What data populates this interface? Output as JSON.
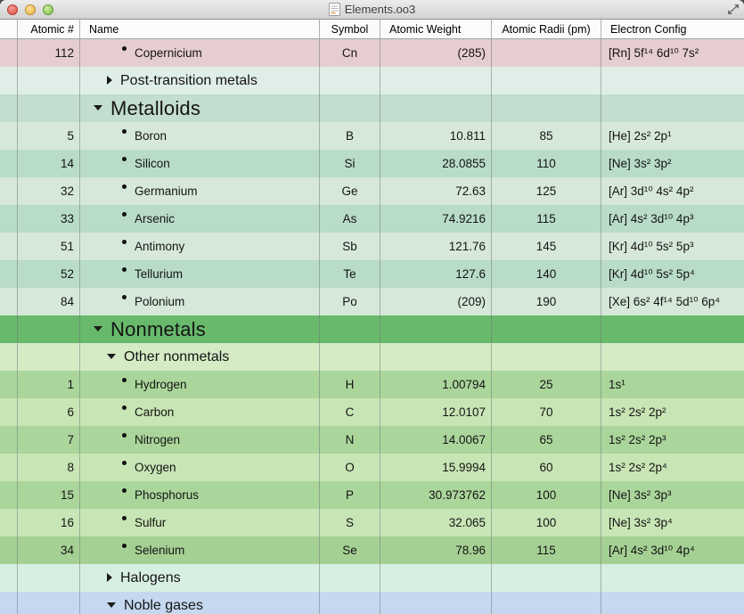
{
  "window": {
    "title": "Elements.oo3"
  },
  "icons": {
    "close": "close-button",
    "minimize": "minimize-button",
    "zoom": "zoom-button",
    "document": "document-icon",
    "fullscreen": "fullscreen-icon"
  },
  "colors": {
    "pink": "#e6cdcf",
    "palemint": "#dfeee6",
    "medmint": "#c3ddcf",
    "tealLight": "#d5e8d9",
    "tealDark": "#b9dcc9",
    "greenHeader": "#68b96b",
    "greenPale": "#d4ebc6",
    "greenDark": "#abd69b",
    "greenLight": "#c8e5b5",
    "greenDeep": "#a5d093",
    "aqua": "#d7eee3",
    "blue": "#c5d8f0"
  },
  "columns": [
    {
      "key": "gutter",
      "label": "",
      "align": "h-left"
    },
    {
      "key": "atomic",
      "label": "Atomic #",
      "align": "h-right"
    },
    {
      "key": "name",
      "label": "Name",
      "align": "h-left"
    },
    {
      "key": "symbol",
      "label": "Symbol",
      "align": "h-center"
    },
    {
      "key": "weight",
      "label": "Atomic Weight",
      "align": "h-left"
    },
    {
      "key": "radius",
      "label": "Atomic Radii (pm)",
      "align": "h-center"
    },
    {
      "key": "config",
      "label": "Electron Config",
      "align": "h-left"
    }
  ],
  "rows": [
    {
      "type": "element",
      "level": 3,
      "atomic": "112",
      "name": "Copernicium",
      "symbol": "Cn",
      "weight": "(285)",
      "radius": "",
      "config": "[Rn] 5f¹⁴ 6d¹⁰ 7s²",
      "bg": "pink"
    },
    {
      "type": "section",
      "level": 2,
      "name": "Post-transition metals",
      "collapsed": true,
      "bg": "palemint"
    },
    {
      "type": "section",
      "level": 1,
      "name": "Metalloids",
      "collapsed": false,
      "bg": "medmint"
    },
    {
      "type": "element",
      "level": 3,
      "atomic": "5",
      "name": "Boron",
      "symbol": "B",
      "weight": "10.811",
      "radius": "85",
      "config": "[He] 2s² 2p¹",
      "bg": "tealLight"
    },
    {
      "type": "element",
      "level": 3,
      "atomic": "14",
      "name": "Silicon",
      "symbol": "Si",
      "weight": "28.0855",
      "radius": "110",
      "config": "[Ne] 3s² 3p²",
      "bg": "tealDark"
    },
    {
      "type": "element",
      "level": 3,
      "atomic": "32",
      "name": "Germanium",
      "symbol": "Ge",
      "weight": "72.63",
      "radius": "125",
      "config": "[Ar] 3d¹⁰ 4s² 4p²",
      "bg": "tealLight"
    },
    {
      "type": "element",
      "level": 3,
      "atomic": "33",
      "name": "Arsenic",
      "symbol": "As",
      "weight": "74.9216",
      "radius": "115",
      "config": "[Ar] 4s² 3d¹⁰ 4p³",
      "bg": "tealDark"
    },
    {
      "type": "element",
      "level": 3,
      "atomic": "51",
      "name": "Antimony",
      "symbol": "Sb",
      "weight": "121.76",
      "radius": "145",
      "config": "[Kr] 4d¹⁰ 5s² 5p³",
      "bg": "tealLight"
    },
    {
      "type": "element",
      "level": 3,
      "atomic": "52",
      "name": "Tellurium",
      "symbol": "Te",
      "weight": "127.6",
      "radius": "140",
      "config": "[Kr] 4d¹⁰ 5s² 5p⁴",
      "bg": "tealDark"
    },
    {
      "type": "element",
      "level": 3,
      "atomic": "84",
      "name": "Polonium",
      "symbol": "Po",
      "weight": "(209)",
      "radius": "190",
      "config": "[Xe] 6s² 4f¹⁴ 5d¹⁰ 6p⁴",
      "bg": "tealLight"
    },
    {
      "type": "section",
      "level": 1,
      "name": "Nonmetals",
      "collapsed": false,
      "bg": "greenHeader"
    },
    {
      "type": "section",
      "level": 2,
      "name": "Other nonmetals",
      "collapsed": false,
      "bg": "greenPale"
    },
    {
      "type": "element",
      "level": 3,
      "atomic": "1",
      "name": "Hydrogen",
      "symbol": "H",
      "weight": "1.00794",
      "radius": "25",
      "config": "1s¹",
      "bg": "greenDark"
    },
    {
      "type": "element",
      "level": 3,
      "atomic": "6",
      "name": "Carbon",
      "symbol": "C",
      "weight": "12.0107",
      "radius": "70",
      "config": "1s² 2s² 2p²",
      "bg": "greenLight"
    },
    {
      "type": "element",
      "level": 3,
      "atomic": "7",
      "name": "Nitrogen",
      "symbol": "N",
      "weight": "14.0067",
      "radius": "65",
      "config": "1s² 2s² 2p³",
      "bg": "greenDark"
    },
    {
      "type": "element",
      "level": 3,
      "atomic": "8",
      "name": "Oxygen",
      "symbol": "O",
      "weight": "15.9994",
      "radius": "60",
      "config": "1s² 2s² 2p⁴",
      "bg": "greenLight"
    },
    {
      "type": "element",
      "level": 3,
      "atomic": "15",
      "name": "Phosphorus",
      "symbol": "P",
      "weight": "30.973762",
      "radius": "100",
      "config": "[Ne] 3s² 3p³",
      "bg": "greenDark"
    },
    {
      "type": "element",
      "level": 3,
      "atomic": "16",
      "name": "Sulfur",
      "symbol": "S",
      "weight": "32.065",
      "radius": "100",
      "config": "[Ne] 3s² 3p⁴",
      "bg": "greenLight"
    },
    {
      "type": "element",
      "level": 3,
      "atomic": "34",
      "name": "Selenium",
      "symbol": "Se",
      "weight": "78.96",
      "radius": "115",
      "config": "[Ar] 4s² 3d¹⁰ 4p⁴",
      "bg": "greenDeep"
    },
    {
      "type": "section",
      "level": 2,
      "name": "Halogens",
      "collapsed": true,
      "bg": "aqua"
    },
    {
      "type": "section",
      "level": 2,
      "name": "Noble gases",
      "collapsed": false,
      "bg": "blue"
    }
  ]
}
